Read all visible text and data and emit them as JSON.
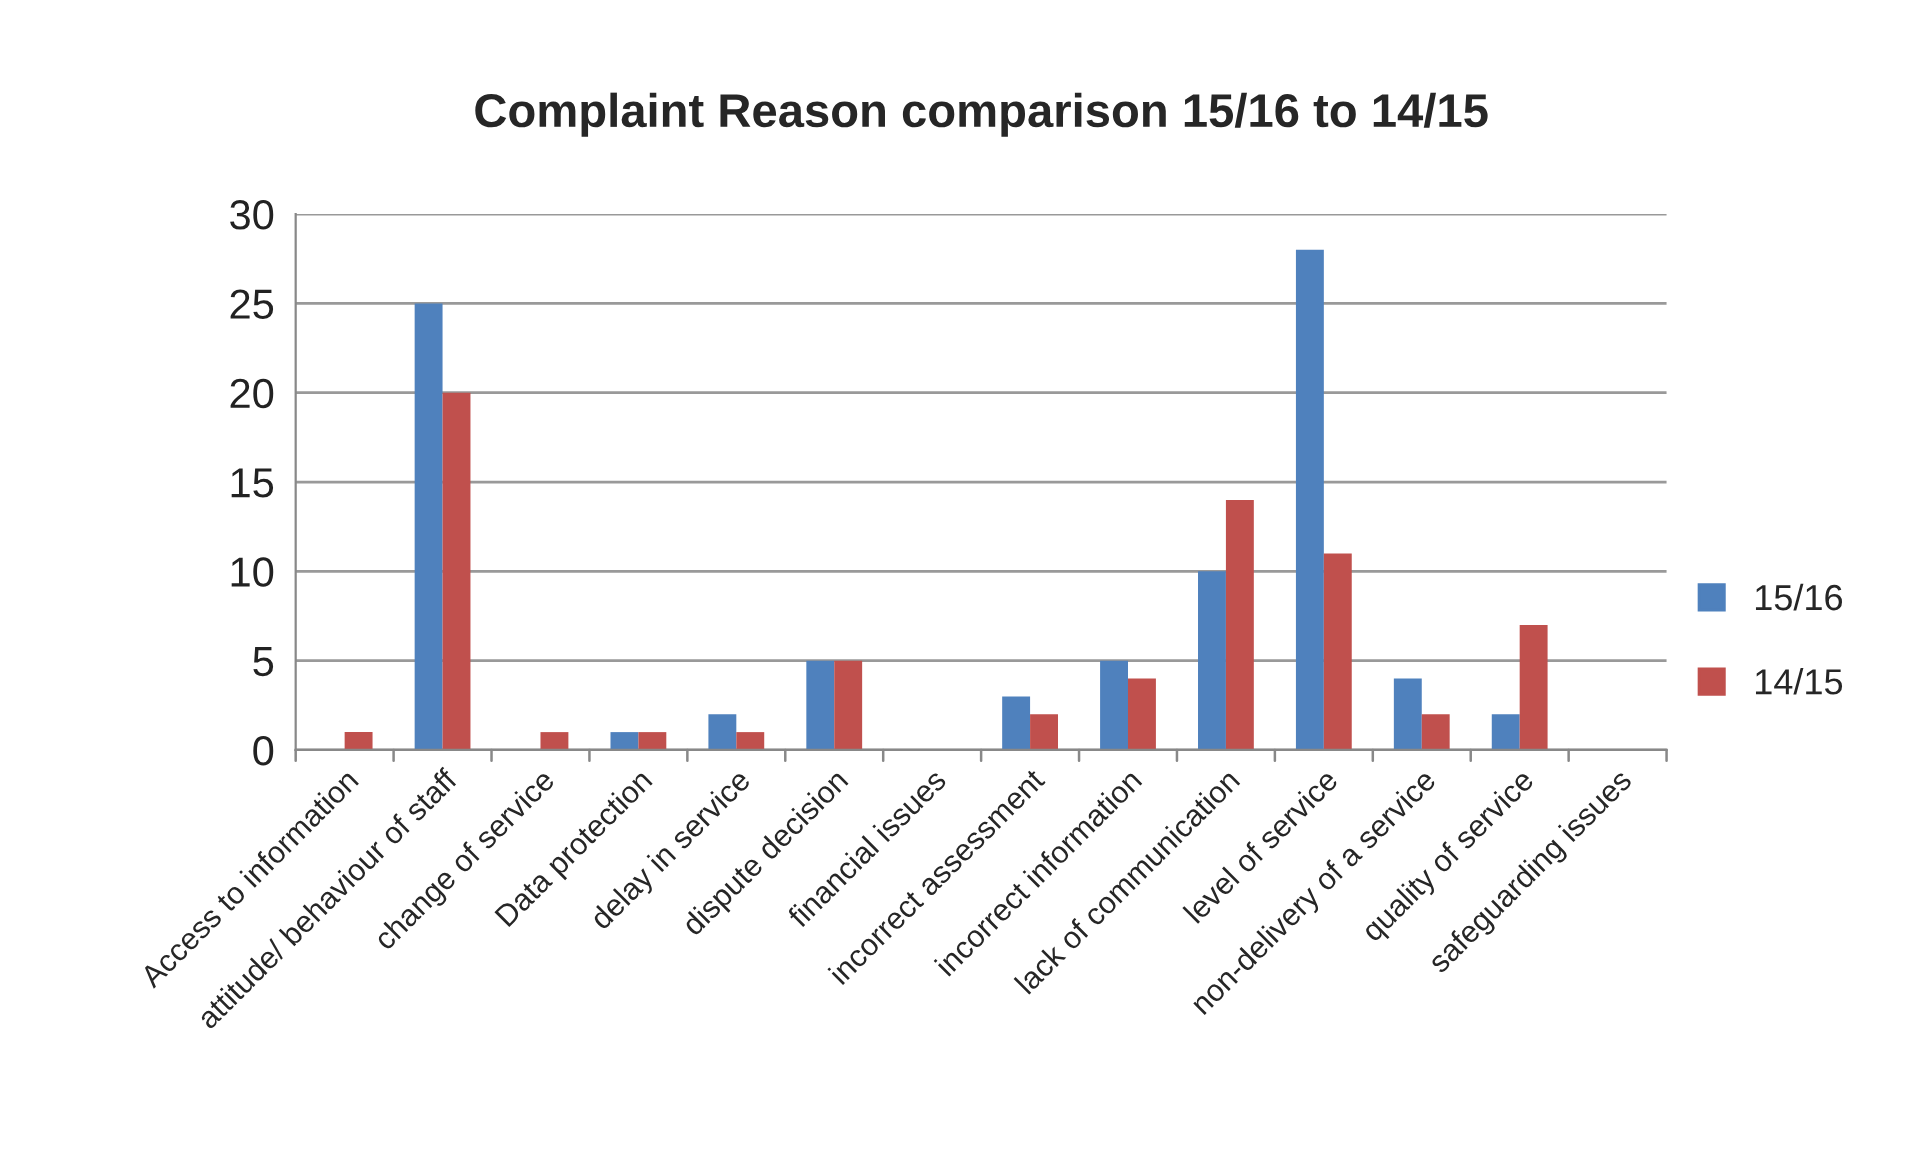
{
  "chart_data": {
    "type": "bar",
    "title": "Complaint Reason comparison 15/16 to 14/15",
    "categories": [
      "Access to information",
      "attitude/ behaviour of staff",
      "change of service",
      "Data protection",
      "delay in service",
      "dispute decision",
      "financial issues",
      "incorrect assessment",
      "incorrect information",
      "lack of communication",
      "level of service",
      "non-delivery of a service",
      "quality of service",
      "safeguarding issues"
    ],
    "series": [
      {
        "name": "15/16",
        "color": "#4f81bd",
        "values": [
          0,
          25,
          0,
          1,
          2,
          5,
          0,
          3,
          5,
          10,
          28,
          4,
          2,
          0
        ]
      },
      {
        "name": "14/15",
        "color": "#c0504d",
        "values": [
          1,
          20,
          1,
          1,
          1,
          5,
          0,
          2,
          4,
          14,
          11,
          2,
          7,
          0
        ]
      }
    ],
    "ylim": [
      0,
      30
    ],
    "yticks": [
      0,
      5,
      10,
      15,
      20,
      25,
      30
    ],
    "grid": "y",
    "legend": "right"
  }
}
